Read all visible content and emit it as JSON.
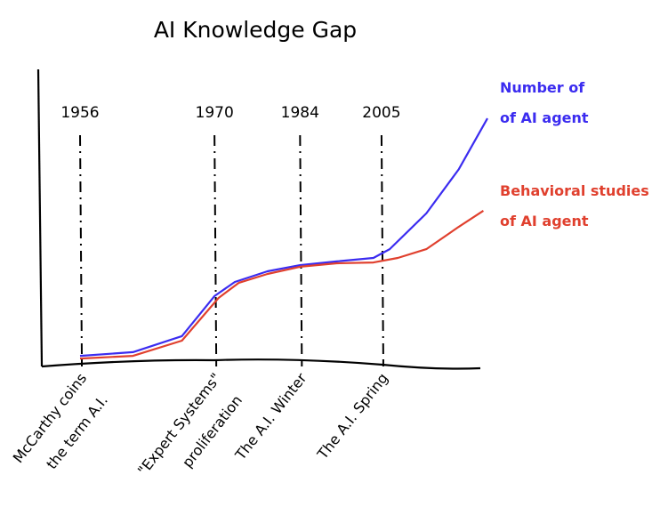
{
  "chart_data": {
    "type": "line",
    "title": "AI Knowledge Gap",
    "xlabel": "",
    "ylabel": "",
    "xlim": [
      0,
      100
    ],
    "ylim": [
      0,
      100
    ],
    "grid": false,
    "legend_placement": "right",
    "events": [
      {
        "year": "1956",
        "x": 0,
        "label_lines": [
          "McCarthy coins",
          "the term A.I."
        ]
      },
      {
        "year": "1970",
        "x": 33,
        "label_lines": [
          "\"Expert Systems\"",
          "proliferation"
        ]
      },
      {
        "year": "1984",
        "x": 54,
        "label_lines": [
          "The A.I. Winter"
        ]
      },
      {
        "year": "2005",
        "x": 74,
        "label_lines": [
          "The A.I. Spring"
        ]
      }
    ],
    "series": [
      {
        "name": "Number of of AI agent",
        "legend_lines": [
          "Number of",
          "of AI agent"
        ],
        "color": "#3b2cf0",
        "x": [
          0,
          13,
          25,
          33,
          38,
          46,
          54,
          63,
          72,
          76,
          85,
          93,
          100
        ],
        "y": [
          3.3,
          4.7,
          10.7,
          25.7,
          31,
          35,
          37.3,
          38.7,
          40,
          43.3,
          56.7,
          73.3,
          92.3
        ]
      },
      {
        "name": "Behavioral studies of AI agent",
        "legend_lines": [
          "Behavioral studies",
          "of AI agent"
        ],
        "color": "#e0402e",
        "x": [
          0,
          13,
          25,
          34,
          39,
          46,
          54,
          63,
          72,
          78,
          85,
          93,
          99
        ],
        "y": [
          2.3,
          3.3,
          9,
          25,
          30.7,
          34,
          36.7,
          38,
          38.3,
          40,
          43.3,
          51.7,
          57.7
        ]
      }
    ]
  }
}
